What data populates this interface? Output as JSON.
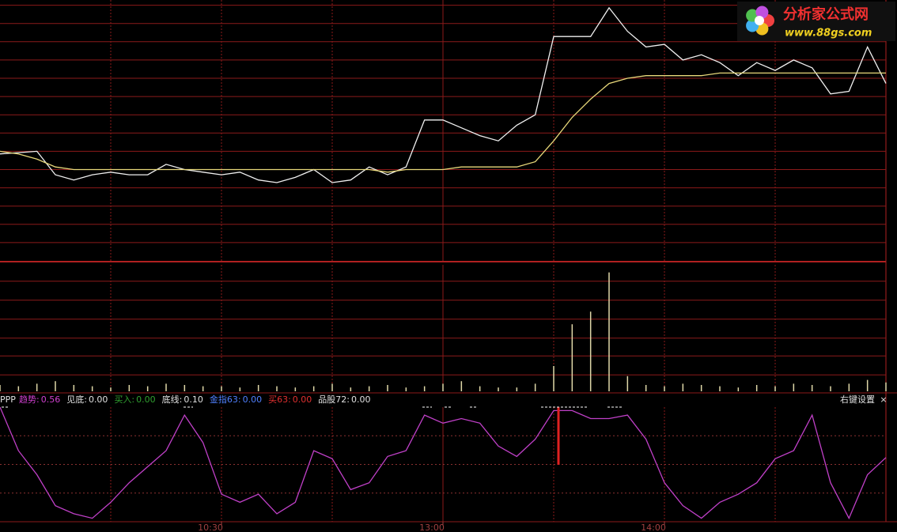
{
  "chart_data": [
    {
      "type": "line",
      "xlim": [
        0,
        240
      ],
      "ylim": [
        0,
        100
      ],
      "yticks": [
        7,
        14,
        21,
        28,
        35,
        42,
        49,
        56,
        63,
        70,
        77,
        84,
        91,
        98
      ],
      "x": [
        0,
        5,
        10,
        15,
        20,
        25,
        30,
        35,
        40,
        45,
        50,
        55,
        60,
        65,
        70,
        75,
        80,
        85,
        90,
        95,
        100,
        105,
        110,
        115,
        120,
        125,
        130,
        135,
        140,
        145,
        150,
        155,
        160,
        165,
        170,
        175,
        180,
        185,
        190,
        195,
        200,
        205,
        210,
        215,
        220,
        225,
        230,
        235,
        240
      ],
      "series": [
        {
          "color": "#f0f0f0",
          "values": [
            41,
            41.5,
            42,
            33,
            31,
            33,
            34,
            33,
            33,
            37,
            35,
            34,
            33,
            34,
            31,
            30,
            32,
            35,
            30,
            31,
            36,
            33,
            36,
            54,
            54,
            51,
            48,
            46,
            52,
            56,
            86,
            86,
            86,
            97,
            88,
            82,
            83,
            77,
            79,
            76,
            71,
            76,
            73,
            77,
            74,
            64,
            65,
            82,
            68
          ]
        },
        {
          "color": "#e8d87a",
          "values": [
            42,
            41,
            39,
            36,
            35,
            35,
            35,
            35,
            35,
            35,
            35,
            35,
            35,
            35,
            35,
            35,
            35,
            35,
            35,
            35,
            35,
            34,
            35,
            35,
            35,
            36,
            36,
            36,
            36,
            38,
            46,
            55,
            62,
            68,
            70,
            71,
            71,
            71,
            71,
            72,
            72,
            72,
            72,
            72,
            72,
            72,
            72,
            72,
            72
          ]
        }
      ]
    },
    {
      "type": "bar",
      "xlim": [
        0,
        240
      ],
      "ylim": [
        0,
        100
      ],
      "color": "#e0d8a8",
      "yticks": [
        13,
        28,
        42,
        57,
        72,
        87
      ],
      "x": [
        0,
        5,
        10,
        15,
        20,
        25,
        30,
        35,
        40,
        45,
        50,
        55,
        60,
        65,
        70,
        75,
        80,
        85,
        90,
        95,
        100,
        105,
        110,
        115,
        120,
        125,
        130,
        135,
        140,
        145,
        150,
        155,
        160,
        165,
        170,
        175,
        180,
        185,
        190,
        195,
        200,
        205,
        210,
        215,
        220,
        225,
        230,
        235,
        240
      ],
      "values": [
        5,
        4,
        6,
        8,
        5,
        4,
        3,
        5,
        4,
        6,
        5,
        4,
        4,
        3,
        5,
        4,
        3,
        4,
        6,
        3,
        4,
        5,
        3,
        4,
        6,
        8,
        4,
        3,
        3,
        6,
        20,
        53,
        63,
        94,
        12,
        5,
        4,
        6,
        5,
        4,
        3,
        5,
        4,
        6,
        5,
        4,
        6,
        9,
        7
      ]
    },
    {
      "type": "line",
      "xlim": [
        0,
        240
      ],
      "ylim": [
        0,
        1
      ],
      "yticks": [
        0.25,
        0.5,
        0.75
      ],
      "x": [
        0,
        5,
        10,
        15,
        20,
        25,
        30,
        35,
        40,
        45,
        50,
        55,
        60,
        65,
        70,
        75,
        80,
        85,
        90,
        95,
        100,
        105,
        110,
        115,
        120,
        125,
        130,
        135,
        140,
        145,
        150,
        155,
        160,
        165,
        170,
        175,
        180,
        185,
        190,
        195,
        200,
        205,
        210,
        215,
        220,
        225,
        230,
        235,
        240
      ],
      "xticks": [
        {
          "value": 60,
          "label": "10:30"
        },
        {
          "value": 120,
          "label": "13:00"
        },
        {
          "value": 180,
          "label": "14:00"
        }
      ],
      "series": [
        {
          "name": "趋势",
          "color": "#c040c8",
          "values": [
            1.0,
            0.62,
            0.41,
            0.14,
            0.07,
            0.03,
            0.17,
            0.34,
            0.48,
            0.62,
            0.93,
            0.69,
            0.24,
            0.17,
            0.24,
            0.07,
            0.17,
            0.62,
            0.55,
            0.28,
            0.34,
            0.57,
            0.62,
            0.93,
            0.86,
            0.9,
            0.86,
            0.66,
            0.57,
            0.72,
            0.97,
            0.97,
            0.9,
            0.9,
            0.93,
            0.72,
            0.34,
            0.14,
            0.03,
            0.17,
            0.24,
            0.34,
            0.55,
            0.62,
            0.93,
            0.34,
            0.03,
            0.41,
            0.56
          ]
        }
      ]
    }
  ],
  "indicator_header": {
    "name": "PPP",
    "items": [
      {
        "label": "趋势:",
        "value": "0.56",
        "color": "#d040d0"
      },
      {
        "label": "见底:",
        "value": "0.00",
        "color": "#e0e0e0"
      },
      {
        "label": "买入:",
        "value": "0.00",
        "color": "#30a030"
      },
      {
        "label": "底线:",
        "value": "0.10",
        "color": "#e0e0e0"
      },
      {
        "label": "金指63:",
        "value": "0.00",
        "color": "#5080ff"
      },
      {
        "label": "买63:",
        "value": "0.00",
        "color": "#e03030"
      },
      {
        "label": "品股72:",
        "value": "0.00",
        "color": "#e0e0e0"
      }
    ],
    "settings": "右键设置",
    "close": "×"
  },
  "logo": {
    "title": "分析家公式网",
    "url": "www.88gs.com"
  }
}
